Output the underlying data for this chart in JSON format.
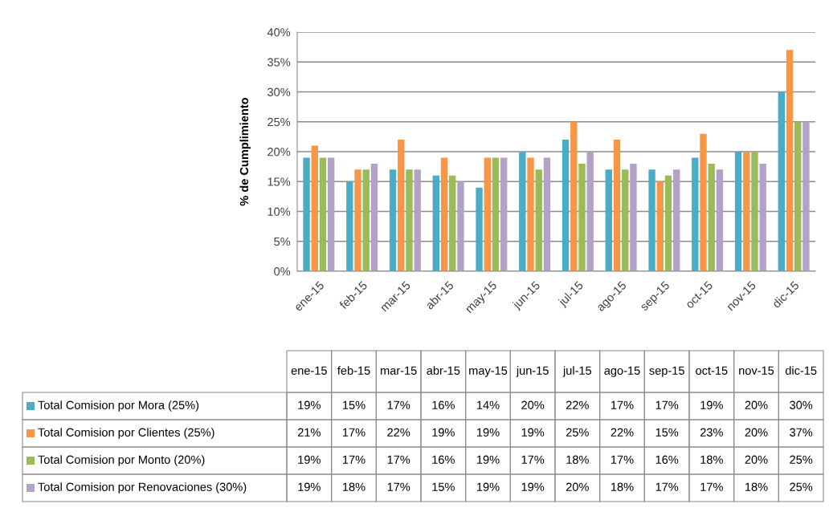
{
  "chart_data": {
    "type": "bar",
    "ylabel": "% de Cumplimiento",
    "categories": [
      "ene-15",
      "feb-15",
      "mar-15",
      "abr-15",
      "may-15",
      "jun-15",
      "jul-15",
      "ago-15",
      "sep-15",
      "oct-15",
      "nov-15",
      "dic-15"
    ],
    "series": [
      {
        "name": "Total Comision por Mora (25%)",
        "color": "#4bacc6",
        "values": [
          19,
          15,
          17,
          16,
          14,
          20,
          22,
          17,
          17,
          19,
          20,
          30
        ],
        "value_labels": [
          "19%",
          "15%",
          "17%",
          "16%",
          "14%",
          "20%",
          "22%",
          "17%",
          "17%",
          "19%",
          "20%",
          "30%"
        ]
      },
      {
        "name": "Total Comision por Clientes (25%)",
        "color": "#f79646",
        "values": [
          21,
          17,
          22,
          19,
          19,
          19,
          25,
          22,
          15,
          23,
          20,
          37
        ],
        "value_labels": [
          "21%",
          "17%",
          "22%",
          "19%",
          "19%",
          "19%",
          "25%",
          "22%",
          "15%",
          "23%",
          "20%",
          "37%"
        ]
      },
      {
        "name": "Total Comision por Monto (20%)",
        "color": "#9bbb59",
        "values": [
          19,
          17,
          17,
          16,
          19,
          17,
          18,
          17,
          16,
          18,
          20,
          25
        ],
        "value_labels": [
          "19%",
          "17%",
          "17%",
          "16%",
          "19%",
          "17%",
          "18%",
          "17%",
          "16%",
          "18%",
          "20%",
          "25%"
        ]
      },
      {
        "name": "Total Comision por Renovaciones (30%)",
        "color": "#b3a2c7",
        "values": [
          19,
          18,
          17,
          15,
          19,
          19,
          20,
          18,
          17,
          17,
          18,
          25
        ],
        "value_labels": [
          "19%",
          "18%",
          "17%",
          "15%",
          "19%",
          "19%",
          "20%",
          "18%",
          "17%",
          "17%",
          "18%",
          "25%"
        ]
      }
    ],
    "ylim": [
      0,
      40
    ],
    "yticks": [
      {
        "value": 0,
        "label": "0%"
      },
      {
        "value": 5,
        "label": "5%"
      },
      {
        "value": 10,
        "label": "10%"
      },
      {
        "value": 15,
        "label": "15%"
      },
      {
        "value": 20,
        "label": "20%"
      },
      {
        "value": 25,
        "label": "25%"
      },
      {
        "value": 30,
        "label": "30%"
      },
      {
        "value": 35,
        "label": "35%"
      },
      {
        "value": 40,
        "label": "40%"
      }
    ],
    "grid": "y",
    "legend": "bottom"
  }
}
